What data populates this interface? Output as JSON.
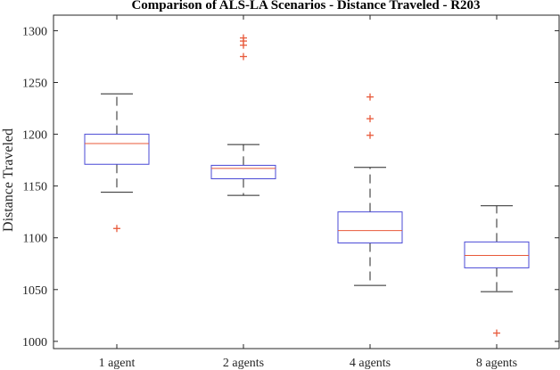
{
  "chart_data": {
    "type": "boxplot",
    "title": "Comparison of ALS-LA Scenarios - Distance Traveled - R203",
    "xlabel": "",
    "ylabel": "Distance Traveled",
    "ylim": [
      993,
      1315
    ],
    "yticks": [
      1000,
      1050,
      1100,
      1150,
      1200,
      1250,
      1300
    ],
    "grid": false,
    "categories": [
      "1 agent",
      "2 agents",
      "4 agents",
      "8 agents"
    ],
    "boxes": [
      {
        "category": "1 agent",
        "whisker_low": 1144,
        "q1": 1171,
        "median": 1191,
        "q3": 1200,
        "whisker_high": 1239,
        "outliers": [
          1109
        ]
      },
      {
        "category": "2 agents",
        "whisker_low": 1141,
        "q1": 1157,
        "median": 1167,
        "q3": 1170,
        "whisker_high": 1190,
        "outliers": [
          1275,
          1286,
          1290,
          1293
        ]
      },
      {
        "category": "4 agents",
        "whisker_low": 1054,
        "q1": 1095,
        "median": 1107,
        "q3": 1125,
        "whisker_high": 1168,
        "outliers": [
          1199,
          1215,
          1236
        ]
      },
      {
        "category": "8 agents",
        "whisker_low": 1048,
        "q1": 1071,
        "median": 1083,
        "q3": 1096,
        "whisker_high": 1131,
        "outliers": [
          1008
        ]
      }
    ],
    "colors": {
      "box": "#4a4ad6",
      "median": "#e8593a",
      "whisker": "#262626",
      "outlier": "#e8593a",
      "axes": "#262626"
    }
  }
}
